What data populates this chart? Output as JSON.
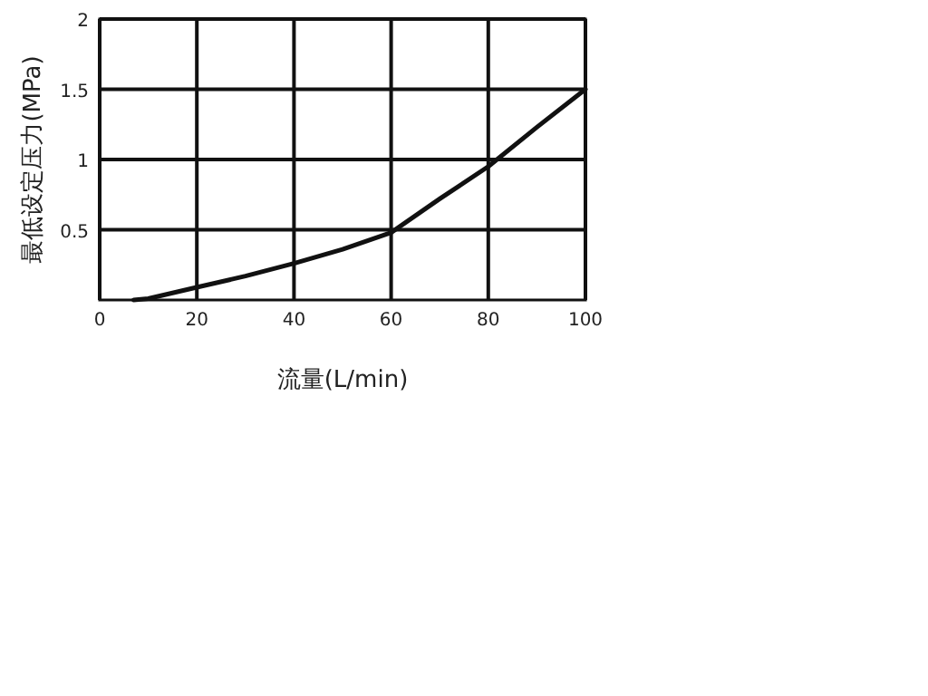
{
  "chart_data": {
    "type": "line",
    "xlabel": "流量(L/min)",
    "ylabel": "最低设定压力(MPa)",
    "x": [
      7,
      10,
      20,
      30,
      40,
      50,
      60,
      70,
      80,
      90,
      100
    ],
    "series": [
      {
        "color": "#111111",
        "values": [
          0,
          0.01,
          0.09,
          0.17,
          0.26,
          0.36,
          0.48,
          0.72,
          0.95,
          1.23,
          1.5
        ]
      }
    ],
    "xlim": [
      0,
      100
    ],
    "xticks": [
      0,
      20,
      40,
      60,
      80,
      100
    ],
    "ylim": [
      0,
      2
    ],
    "yticks": [
      0.5,
      1,
      1.5,
      2
    ],
    "grid": true,
    "marker": "none",
    "line_style": "solid"
  }
}
